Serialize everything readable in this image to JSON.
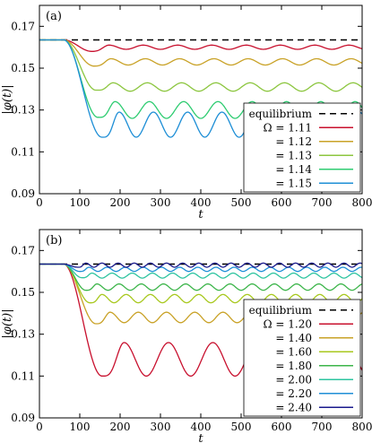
{
  "chart_data": [
    {
      "type": "line",
      "panel_label": "(a)",
      "xlabel": "t",
      "ylabel": "|φ(t)|",
      "xlim": [
        0,
        800
      ],
      "ylim": [
        0.09,
        0.18
      ],
      "xticks": [
        0,
        100,
        200,
        300,
        400,
        500,
        600,
        700,
        800
      ],
      "yticks": [
        0.09,
        0.11,
        0.13,
        0.15,
        0.17
      ],
      "ytick_labels": [
        "0.09",
        "0.11",
        "0.13",
        "0.15",
        "0.17"
      ],
      "legend_position": "bottom-right",
      "equilibrium": {
        "name": "equilibrium",
        "y": 0.1635,
        "color": "#000000",
        "style": "dashed"
      },
      "series": [
        {
          "name": "Ω = 1.11",
          "color": "#c8102e",
          "onset": 60,
          "minimum": 0.158,
          "min_t": 130,
          "mean": 0.16,
          "amplitude": 0.001,
          "period": 85
        },
        {
          "name": "= 1.12",
          "color": "#c9a227",
          "onset": 60,
          "minimum": 0.151,
          "min_t": 135,
          "mean": 0.153,
          "amplitude": 0.0015,
          "period": 85
        },
        {
          "name": "= 1.13",
          "color": "#8cc63f",
          "onset": 60,
          "minimum": 0.1395,
          "min_t": 140,
          "mean": 0.141,
          "amplitude": 0.002,
          "period": 85
        },
        {
          "name": "= 1.14",
          "color": "#2ecc71",
          "onset": 60,
          "minimum": 0.1265,
          "min_t": 145,
          "mean": 0.13,
          "amplitude": 0.004,
          "period": 85
        },
        {
          "name": "= 1.15",
          "color": "#1f8fd6",
          "onset": 60,
          "minimum": 0.117,
          "min_t": 155,
          "mean": 0.123,
          "amplitude": 0.006,
          "period": 85
        }
      ]
    },
    {
      "type": "line",
      "panel_label": "(b)",
      "xlabel": "t",
      "ylabel": "|φ(t)|",
      "xlim": [
        0,
        800
      ],
      "ylim": [
        0.09,
        0.18
      ],
      "xticks": [
        0,
        100,
        200,
        300,
        400,
        500,
        600,
        700,
        800
      ],
      "yticks": [
        0.09,
        0.11,
        0.13,
        0.15,
        0.17
      ],
      "ytick_labels": [
        "0.09",
        "0.11",
        "0.13",
        "0.15",
        "0.17"
      ],
      "legend_position": "bottom-right",
      "equilibrium": {
        "name": "equilibrium",
        "y": 0.1635,
        "color": "#000000",
        "style": "dashed"
      },
      "series": [
        {
          "name": "Ω = 1.20",
          "color": "#c8102e",
          "onset": 60,
          "minimum": 0.11,
          "min_t": 155,
          "mean": 0.118,
          "amplitude": 0.008,
          "period": 110
        },
        {
          "name": "= 1.40",
          "color": "#c9a227",
          "onset": 60,
          "minimum": 0.135,
          "min_t": 140,
          "mean": 0.138,
          "amplitude": 0.0025,
          "period": 70
        },
        {
          "name": "= 1.60",
          "color": "#a8c81e",
          "onset": 60,
          "minimum": 0.145,
          "min_t": 125,
          "mean": 0.147,
          "amplitude": 0.002,
          "period": 60
        },
        {
          "name": "= 1.80",
          "color": "#3cb54a",
          "onset": 60,
          "minimum": 0.151,
          "min_t": 115,
          "mean": 0.1525,
          "amplitude": 0.0015,
          "period": 55
        },
        {
          "name": "= 2.00",
          "color": "#2ec4a0",
          "onset": 60,
          "minimum": 0.157,
          "min_t": 105,
          "mean": 0.158,
          "amplitude": 0.0012,
          "period": 50
        },
        {
          "name": "= 2.20",
          "color": "#1f8fd6",
          "onset": 60,
          "minimum": 0.16,
          "min_t": 100,
          "mean": 0.161,
          "amplitude": 0.001,
          "period": 45
        },
        {
          "name": "= 2.40",
          "color": "#1a1a8c",
          "onset": 60,
          "minimum": 0.162,
          "min_t": 95,
          "mean": 0.163,
          "amplitude": 0.001,
          "period": 40
        }
      ]
    }
  ]
}
